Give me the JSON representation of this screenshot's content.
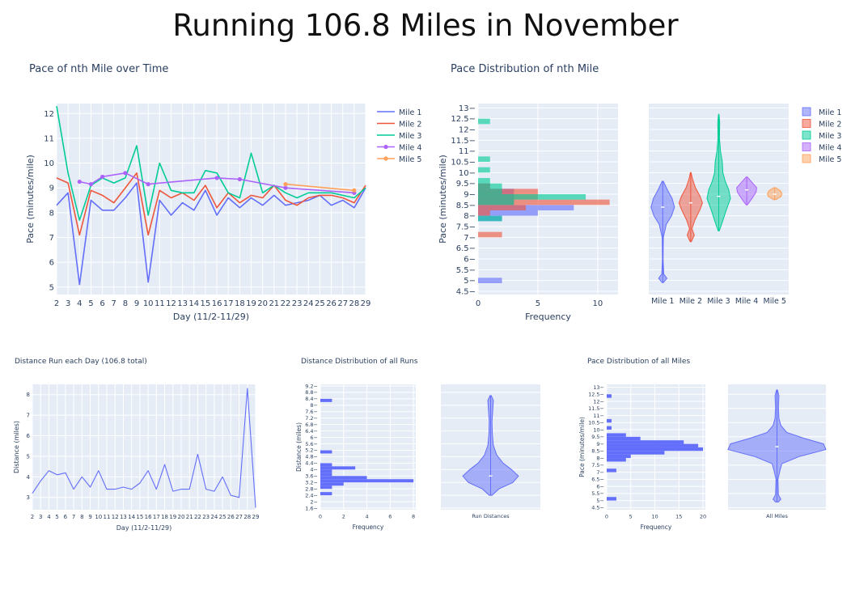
{
  "page": {
    "title": "Running 106.8 Miles in November"
  },
  "colors": {
    "mile1": "#636efa",
    "mile2": "#ef553b",
    "mile3": "#00cc96",
    "mile4": "#ab63fa",
    "mile5": "#ffa15a",
    "plot_bg": "#e5ecf6",
    "grid": "#ffffff"
  },
  "chart_data": [
    {
      "id": "pace_line",
      "type": "line",
      "title": "Pace of nth Mile over Time",
      "xlabel": "Day (11/2-11/29)",
      "ylabel": "Pace (minutes/mile)",
      "xlim": [
        2,
        29
      ],
      "ylim": [
        4.7,
        12.4
      ],
      "xticks": [
        2,
        3,
        4,
        5,
        6,
        7,
        8,
        9,
        10,
        11,
        12,
        13,
        14,
        15,
        16,
        17,
        18,
        19,
        20,
        21,
        22,
        23,
        24,
        25,
        26,
        27,
        28,
        29
      ],
      "yticks": [
        5,
        6,
        7,
        8,
        9,
        10,
        11,
        12
      ],
      "legend": "right",
      "series": [
        {
          "name": "Mile 1",
          "color_key": "mile1",
          "markers": false,
          "x": [
            2,
            3,
            4,
            5,
            6,
            7,
            8,
            9,
            10,
            11,
            12,
            13,
            14,
            15,
            16,
            17,
            18,
            19,
            20,
            21,
            22,
            23,
            24,
            25,
            26,
            27,
            28,
            29
          ],
          "y": [
            8.3,
            8.8,
            5.1,
            8.5,
            8.1,
            8.1,
            8.6,
            9.2,
            5.2,
            8.5,
            7.9,
            8.4,
            8.1,
            8.9,
            7.9,
            8.6,
            8.2,
            8.6,
            8.3,
            8.7,
            8.3,
            8.4,
            8.5,
            8.7,
            8.3,
            8.5,
            8.2,
            9.0
          ]
        },
        {
          "name": "Mile 2",
          "color_key": "mile2",
          "markers": false,
          "x": [
            2,
            3,
            4,
            5,
            6,
            7,
            8,
            9,
            10,
            11,
            12,
            13,
            14,
            15,
            16,
            17,
            18,
            19,
            20,
            21,
            22,
            23,
            24,
            25,
            26,
            27,
            28,
            29
          ],
          "y": [
            9.4,
            9.2,
            7.1,
            8.9,
            8.7,
            8.4,
            9.0,
            9.6,
            7.1,
            8.9,
            8.6,
            8.8,
            8.5,
            9.1,
            8.2,
            8.8,
            8.4,
            8.7,
            8.6,
            9.1,
            8.5,
            8.3,
            8.6,
            8.7,
            8.7,
            8.6,
            8.4,
            9.1
          ]
        },
        {
          "name": "Mile 3",
          "color_key": "mile3",
          "markers": false,
          "x": [
            2,
            3,
            4,
            5,
            6,
            7,
            8,
            9,
            10,
            11,
            12,
            13,
            14,
            15,
            16,
            17,
            18,
            19,
            20,
            21,
            22,
            23,
            24,
            25,
            26,
            27,
            28,
            29
          ],
          "y": [
            12.3,
            9.6,
            7.7,
            9.1,
            9.4,
            9.2,
            9.4,
            10.7,
            7.9,
            10.0,
            8.9,
            8.8,
            8.8,
            9.7,
            9.6,
            8.8,
            8.6,
            10.4,
            8.8,
            9.1,
            8.8,
            8.6,
            8.8,
            8.8,
            8.8,
            8.7,
            8.6,
            9.0
          ]
        },
        {
          "name": "Mile 4",
          "color_key": "mile4",
          "markers": true,
          "x": [
            4,
            5,
            6,
            8,
            10,
            16,
            18,
            22,
            28
          ],
          "y": [
            9.25,
            9.15,
            9.45,
            9.6,
            9.15,
            9.4,
            9.35,
            9.0,
            8.8
          ]
        },
        {
          "name": "Mile 5",
          "color_key": "mile5",
          "markers": true,
          "x": [
            22,
            28
          ],
          "y": [
            9.15,
            8.9
          ]
        }
      ]
    },
    {
      "id": "pace_hist",
      "type": "bar",
      "orientation": "horizontal",
      "title": "Pace Distribution of nth Mile",
      "xlabel": "Frequency",
      "ylabel": "Pace (minutes/mile)",
      "xlim": [
        0,
        11.7
      ],
      "ylim": [
        4.35,
        13.2
      ],
      "xticks": [
        0,
        5,
        10
      ],
      "yticks": [
        4.5,
        5,
        5.5,
        6,
        6.5,
        7,
        7.5,
        8,
        8.5,
        9,
        9.5,
        10,
        10.5,
        11,
        11.5,
        12,
        12.5,
        13
      ],
      "bin_width": 0.25,
      "series": [
        {
          "name": "Mile 1",
          "color_key": "mile1",
          "bins": [
            [
              5.0,
              2
            ],
            [
              7.875,
              2
            ],
            [
              8.125,
              5
            ],
            [
              8.375,
              8
            ],
            [
              8.625,
              3
            ],
            [
              8.875,
              3
            ],
            [
              9.125,
              3
            ],
            [
              9.375,
              1
            ]
          ]
        },
        {
          "name": "Mile 2",
          "color_key": "mile2",
          "bins": [
            [
              7.125,
              2
            ],
            [
              8.125,
              1
            ],
            [
              8.375,
              4
            ],
            [
              8.625,
              11
            ],
            [
              8.875,
              5
            ],
            [
              9.125,
              5
            ],
            [
              9.375,
              1
            ]
          ]
        },
        {
          "name": "Mile 3",
          "color_key": "mile3",
          "bins": [
            [
              7.875,
              2
            ],
            [
              8.625,
              3
            ],
            [
              8.875,
              9
            ],
            [
              9.125,
              2
            ],
            [
              9.375,
              2
            ],
            [
              9.625,
              1
            ],
            [
              10.125,
              1
            ],
            [
              10.625,
              1
            ],
            [
              12.375,
              1
            ]
          ]
        }
      ]
    },
    {
      "id": "pace_violin",
      "type": "violin",
      "categories": [
        "Mile 1",
        "Mile 2",
        "Mile 3",
        "Mile 4",
        "Mile 5"
      ],
      "ylim": [
        4.35,
        13.2
      ],
      "legend": "right",
      "series": [
        {
          "name": "Mile 1",
          "color_key": "mile1",
          "min": 4.9,
          "max": 9.6,
          "median": 8.4,
          "profile": [
            [
              4.9,
              0.05
            ],
            [
              5.1,
              0.35
            ],
            [
              5.3,
              0.08
            ],
            [
              6.0,
              0.03
            ],
            [
              7.0,
              0.05
            ],
            [
              7.6,
              0.3
            ],
            [
              8.0,
              0.75
            ],
            [
              8.4,
              1.0
            ],
            [
              8.8,
              0.8
            ],
            [
              9.2,
              0.4
            ],
            [
              9.6,
              0.05
            ]
          ]
        },
        {
          "name": "Mile 2",
          "color_key": "mile2",
          "min": 6.8,
          "max": 10.0,
          "median": 8.6,
          "profile": [
            [
              6.8,
              0.05
            ],
            [
              7.1,
              0.3
            ],
            [
              7.4,
              0.1
            ],
            [
              7.8,
              0.35
            ],
            [
              8.3,
              0.8
            ],
            [
              8.6,
              1.0
            ],
            [
              8.9,
              0.8
            ],
            [
              9.3,
              0.4
            ],
            [
              9.7,
              0.15
            ],
            [
              10.0,
              0.03
            ]
          ]
        },
        {
          "name": "Mile 3",
          "color_key": "mile3",
          "min": 7.3,
          "max": 12.7,
          "median": 8.9,
          "profile": [
            [
              7.3,
              0.05
            ],
            [
              7.7,
              0.3
            ],
            [
              8.2,
              0.6
            ],
            [
              8.8,
              1.0
            ],
            [
              9.2,
              0.85
            ],
            [
              9.6,
              0.55
            ],
            [
              10.0,
              0.35
            ],
            [
              10.5,
              0.3
            ],
            [
              11.0,
              0.15
            ],
            [
              11.6,
              0.06
            ],
            [
              12.3,
              0.08
            ],
            [
              12.7,
              0.02
            ]
          ]
        },
        {
          "name": "Mile 4",
          "color_key": "mile4",
          "min": 8.5,
          "max": 9.8,
          "median": 9.2,
          "profile": [
            [
              8.5,
              0.05
            ],
            [
              8.8,
              0.45
            ],
            [
              9.1,
              0.8
            ],
            [
              9.3,
              0.85
            ],
            [
              9.55,
              0.45
            ],
            [
              9.8,
              0.05
            ]
          ]
        },
        {
          "name": "Mile 5",
          "color_key": "mile5",
          "min": 8.75,
          "max": 9.3,
          "median": 9.0,
          "profile": [
            [
              8.75,
              0.1
            ],
            [
              8.9,
              0.55
            ],
            [
              9.02,
              0.62
            ],
            [
              9.15,
              0.5
            ],
            [
              9.3,
              0.1
            ]
          ]
        }
      ]
    },
    {
      "id": "distance_line",
      "type": "line",
      "title": "Distance Run each Day (106.8 total)",
      "xlabel": "Day (11/2-11/29)",
      "ylabel": "Distance (miles)",
      "xlim": [
        2,
        29
      ],
      "ylim": [
        2.4,
        8.5
      ],
      "xticks": [
        2,
        3,
        4,
        5,
        6,
        7,
        8,
        9,
        10,
        11,
        12,
        13,
        14,
        15,
        16,
        17,
        18,
        19,
        20,
        21,
        22,
        23,
        24,
        25,
        26,
        27,
        28,
        29
      ],
      "yticks": [
        3,
        4,
        5,
        6,
        7,
        8
      ],
      "series": [
        {
          "name": "",
          "color_key": "mile1",
          "x": [
            2,
            3,
            4,
            5,
            6,
            7,
            8,
            9,
            10,
            11,
            12,
            13,
            14,
            15,
            16,
            17,
            18,
            19,
            20,
            21,
            22,
            23,
            24,
            25,
            26,
            27,
            28,
            29
          ],
          "y": [
            3.2,
            3.8,
            4.3,
            4.1,
            4.2,
            3.4,
            4.0,
            3.5,
            4.3,
            3.4,
            3.4,
            3.5,
            3.4,
            3.7,
            4.3,
            3.4,
            4.6,
            3.3,
            3.4,
            3.4,
            5.1,
            3.4,
            3.3,
            4.0,
            3.1,
            3.0,
            8.3,
            2.5
          ]
        }
      ]
    },
    {
      "id": "distance_hist",
      "type": "bar",
      "orientation": "horizontal",
      "title": "Distance Distribution of all Runs",
      "xlabel": "Frequency",
      "ylabel": "Distance (miles)",
      "xlim": [
        0,
        8.2
      ],
      "ylim": [
        1.5,
        9.3
      ],
      "xticks": [
        0,
        2,
        4,
        6,
        8
      ],
      "yticks": [
        1.6,
        2,
        2.4,
        2.8,
        3.2,
        3.6,
        4,
        4.4,
        4.8,
        5.2,
        5.6,
        6,
        6.4,
        6.8,
        7.2,
        7.6,
        8,
        8.4,
        8.8,
        9.2
      ],
      "bin_width": 0.2,
      "bins": [
        [
          2.5,
          1
        ],
        [
          2.9,
          1
        ],
        [
          3.1,
          2
        ],
        [
          3.3,
          8
        ],
        [
          3.5,
          4
        ],
        [
          3.7,
          1
        ],
        [
          3.9,
          1
        ],
        [
          4.1,
          3
        ],
        [
          4.3,
          1
        ],
        [
          5.1,
          1
        ],
        [
          8.3,
          1
        ]
      ]
    },
    {
      "id": "distance_violin",
      "type": "violin",
      "categories": [
        "Run Distances"
      ],
      "ylim": [
        1.5,
        9.3
      ],
      "series": [
        {
          "name": "Run Distances",
          "color_key": "mile1",
          "min": 2.4,
          "max": 8.6,
          "median": 3.6,
          "profile": [
            [
              2.4,
              0.05
            ],
            [
              2.8,
              0.3
            ],
            [
              3.2,
              0.8
            ],
            [
              3.6,
              1.0
            ],
            [
              4.0,
              0.75
            ],
            [
              4.4,
              0.45
            ],
            [
              4.9,
              0.22
            ],
            [
              5.5,
              0.1
            ],
            [
              6.2,
              0.06
            ],
            [
              7.0,
              0.05
            ],
            [
              7.8,
              0.08
            ],
            [
              8.3,
              0.1
            ],
            [
              8.6,
              0.02
            ]
          ]
        }
      ]
    },
    {
      "id": "allpace_hist",
      "type": "bar",
      "orientation": "horizontal",
      "title": "Pace Distribution of all Miles",
      "xlabel": "Frequency",
      "ylabel": "Pace (minutes/mile)",
      "xlim": [
        0,
        20.5
      ],
      "ylim": [
        4.35,
        13.2
      ],
      "xticks": [
        0,
        5,
        10,
        15,
        20
      ],
      "yticks": [
        4.5,
        5,
        5.5,
        6,
        6.5,
        7,
        7.5,
        8,
        8.5,
        9,
        9.5,
        10,
        10.5,
        11,
        11.5,
        12,
        12.5,
        13
      ],
      "bin_width": 0.25,
      "bins": [
        [
          5.125,
          2
        ],
        [
          7.125,
          2
        ],
        [
          7.875,
          4
        ],
        [
          8.125,
          5
        ],
        [
          8.375,
          12
        ],
        [
          8.625,
          20
        ],
        [
          8.875,
          19
        ],
        [
          9.125,
          16
        ],
        [
          9.375,
          7
        ],
        [
          9.625,
          4
        ],
        [
          10.125,
          1
        ],
        [
          10.625,
          1
        ],
        [
          12.375,
          1
        ]
      ]
    },
    {
      "id": "allpace_violin",
      "type": "violin",
      "categories": [
        "All Miles"
      ],
      "ylim": [
        4.35,
        13.2
      ],
      "series": [
        {
          "name": "All Miles",
          "color_key": "mile1",
          "min": 4.9,
          "max": 12.8,
          "median": 8.8,
          "profile": [
            [
              4.9,
              0.03
            ],
            [
              5.1,
              0.08
            ],
            [
              5.4,
              0.03
            ],
            [
              6.5,
              0.02
            ],
            [
              7.1,
              0.06
            ],
            [
              7.6,
              0.1
            ],
            [
              8.1,
              0.45
            ],
            [
              8.6,
              1.0
            ],
            [
              9.0,
              0.95
            ],
            [
              9.4,
              0.55
            ],
            [
              9.8,
              0.2
            ],
            [
              10.3,
              0.08
            ],
            [
              10.8,
              0.04
            ],
            [
              11.6,
              0.03
            ],
            [
              12.4,
              0.04
            ],
            [
              12.8,
              0.01
            ]
          ]
        }
      ]
    }
  ]
}
